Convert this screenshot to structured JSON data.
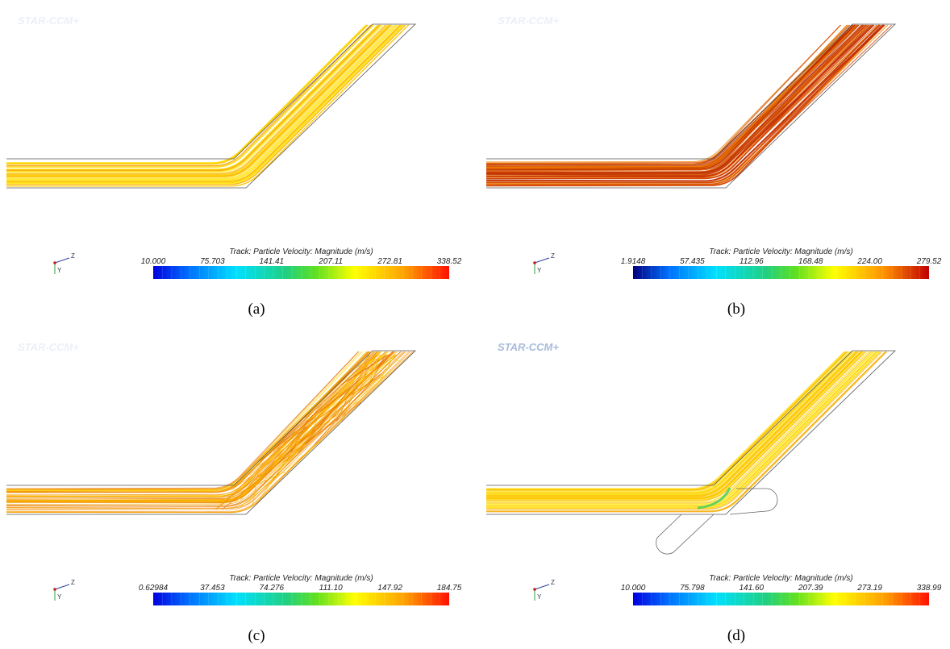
{
  "panels": [
    {
      "caption": "(a)",
      "logo": "STAR-CCM+",
      "triad": [
        "Z",
        "Y"
      ],
      "colorbar": {
        "title": "Track: Particle Velocity: Magnitude (m/s)",
        "ticks": [
          "10.000",
          "75.703",
          "141.41",
          "207.11",
          "272.81",
          "338.52"
        ]
      }
    },
    {
      "caption": "(b)",
      "logo": "STAR-CCM+",
      "triad": [
        "Z",
        "Y"
      ],
      "colorbar": {
        "title": "Track: Particle Velocity: Magnitude (m/s)",
        "ticks": [
          "1.9148",
          "57.435",
          "112.96",
          "168.48",
          "224.00",
          "279.52"
        ]
      }
    },
    {
      "caption": "(c)",
      "logo": "STAR-CCM+",
      "triad": [
        "Z",
        "Y"
      ],
      "colorbar": {
        "title": "Track: Particle Velocity: Magnitude (m/s)",
        "ticks": [
          "0.62984",
          "37.453",
          "74.276",
          "111.10",
          "147.92",
          "184.75"
        ]
      }
    },
    {
      "caption": "(d)",
      "logo": "STAR-CCM+",
      "triad": [
        "Z",
        "Y"
      ],
      "colorbar": {
        "title": "Track: Particle Velocity: Magnitude (m/s)",
        "ticks": [
          "10.000",
          "75.798",
          "141.60",
          "207.39",
          "273.19",
          "338.99"
        ]
      }
    }
  ]
}
